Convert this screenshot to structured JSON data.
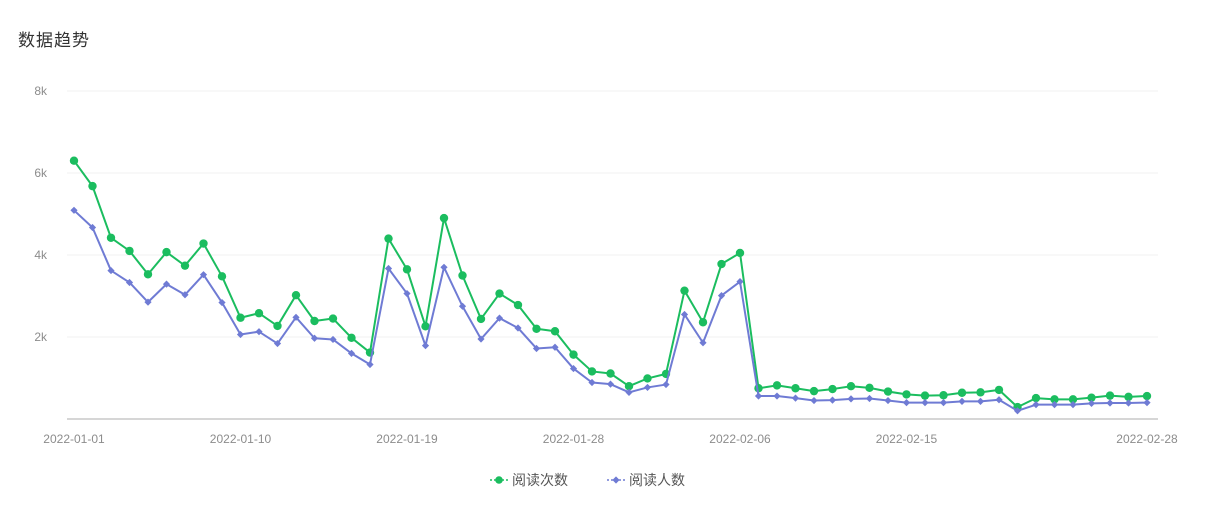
{
  "page": {
    "title": "数据趋势"
  },
  "colors": {
    "reads": "#1bbd5f",
    "readers": "#6f7bd4",
    "grid": "#f0f0f0",
    "axis": "#c8c8c8",
    "label": "#8c8c8c"
  },
  "chart_data": {
    "type": "line",
    "title": "数据趋势",
    "xlabel": "",
    "ylabel": "",
    "ylim": [
      0,
      8000
    ],
    "yticks": [
      {
        "value": 2000,
        "label": "2k"
      },
      {
        "value": 4000,
        "label": "4k"
      },
      {
        "value": 6000,
        "label": "6k"
      },
      {
        "value": 8000,
        "label": "8k"
      }
    ],
    "xticks": [
      {
        "index": 0,
        "label": "2022-01-01"
      },
      {
        "index": 9,
        "label": "2022-01-10"
      },
      {
        "index": 18,
        "label": "2022-01-19"
      },
      {
        "index": 27,
        "label": "2022-01-28"
      },
      {
        "index": 36,
        "label": "2022-02-06"
      },
      {
        "index": 45,
        "label": "2022-02-15"
      },
      {
        "index": 58,
        "label": "2022-02-28"
      }
    ],
    "x_start": "2022-01-01",
    "x_end": "2022-02-28",
    "grid": true,
    "legend": "bottom",
    "series": [
      {
        "name": "阅读次数",
        "marker": "circle",
        "values": [
          6300,
          5680,
          4420,
          4100,
          3530,
          4070,
          3740,
          4280,
          3480,
          2470,
          2580,
          2270,
          3020,
          2390,
          2450,
          1980,
          1620,
          4400,
          3650,
          2260,
          4900,
          3500,
          2440,
          3060,
          2780,
          2200,
          2140,
          1570,
          1160,
          1110,
          800,
          990,
          1100,
          3130,
          2360,
          3780,
          4050,
          750,
          820,
          750,
          680,
          730,
          800,
          760,
          670,
          600,
          570,
          580,
          640,
          650,
          710,
          290,
          510,
          480,
          480,
          520,
          570,
          540,
          560
        ]
      },
      {
        "name": "阅读人数",
        "marker": "diamond",
        "values": [
          5090,
          4670,
          3620,
          3330,
          2850,
          3290,
          3030,
          3520,
          2840,
          2060,
          2130,
          1840,
          2480,
          1970,
          1940,
          1600,
          1330,
          3670,
          3060,
          1790,
          3700,
          2750,
          1950,
          2460,
          2220,
          1720,
          1750,
          1230,
          890,
          850,
          650,
          770,
          840,
          2550,
          1860,
          3010,
          3350,
          560,
          560,
          510,
          450,
          460,
          490,
          500,
          450,
          400,
          400,
          400,
          430,
          430,
          470,
          200,
          350,
          350,
          350,
          380,
          390,
          390,
          400
        ]
      }
    ]
  }
}
